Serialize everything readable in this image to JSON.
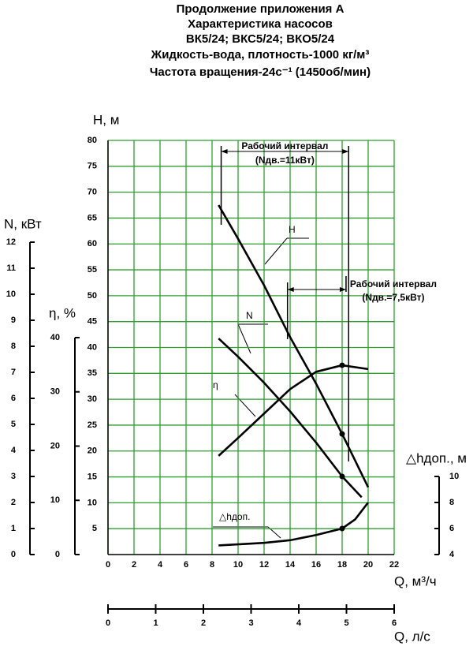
{
  "chart_data": {
    "type": "line",
    "title": [
      "Продолжение приложения А",
      "Характеристика насосов",
      "ВК5/24; ВКС5/24; ВКО5/24",
      "Жидкость-вода, плотность-1000 кг/м³",
      "Частота вращения-24с⁻¹ (1450об/мин)"
    ],
    "xlabel": "Q, м³/ч",
    "xlim": [
      0,
      22
    ],
    "xticks": [
      0,
      2,
      4,
      6,
      8,
      10,
      12,
      14,
      16,
      18,
      20,
      22
    ],
    "x2label": "Q, л/с",
    "x2lim": [
      0,
      6
    ],
    "x2ticks": [
      0,
      1,
      2,
      3,
      4,
      5,
      6
    ],
    "ylabel": "H, м",
    "ylim": [
      0,
      80
    ],
    "yticks": [
      5,
      10,
      15,
      20,
      25,
      30,
      35,
      40,
      45,
      50,
      55,
      60,
      65,
      70,
      75,
      80
    ],
    "y2label": "N, кВт",
    "y2lim": [
      0,
      12
    ],
    "y2ticks": [
      0,
      1,
      2,
      3,
      4,
      5,
      6,
      7,
      8,
      9,
      10,
      11,
      12
    ],
    "y3label": "η, %",
    "y3lim": [
      0,
      40
    ],
    "y3ticks": [
      0,
      10,
      20,
      30,
      40
    ],
    "y4label": "△hдоп., м",
    "y4lim": [
      4,
      10
    ],
    "y4ticks": [
      4,
      6,
      8,
      10
    ],
    "grid": true,
    "grid_color": "#2e9e2e",
    "markers_at_x": 18,
    "series": [
      {
        "name": "H",
        "color": "#000000",
        "axis": "y",
        "x": [
          8.5,
          10,
          12,
          14,
          16,
          18,
          20
        ],
        "values": [
          67.5,
          61,
          52,
          42,
          33,
          23.3,
          13
        ]
      },
      {
        "name": "N",
        "color": "#000000",
        "axis": "y2",
        "x": [
          8.5,
          10,
          12,
          14,
          16,
          18,
          19.5
        ],
        "values": [
          8.3,
          7.6,
          6.6,
          5.5,
          4.3,
          3.0,
          2.2
        ]
      },
      {
        "name": "η",
        "color": "#000000",
        "axis": "y3",
        "x": [
          8.5,
          10,
          12,
          14,
          16,
          18,
          20
        ],
        "values": [
          18.2,
          21.5,
          26,
          30.5,
          33.7,
          34.9,
          34.2
        ]
      },
      {
        "name": "△hдоп.",
        "color": "#000000",
        "axis": "y4",
        "x": [
          8.5,
          12,
          14,
          16,
          18,
          19,
          20
        ],
        "values": [
          4.7,
          4.9,
          5.1,
          5.5,
          6.0,
          6.7,
          8.0
        ]
      }
    ],
    "annotations": [
      {
        "text": "Рабочий интервал",
        "note": "(Nдв.=11кВт)",
        "x": [
          8.7,
          18.5
        ]
      },
      {
        "text": "Рабочий интервал",
        "note": "(Nдв.=7,5кВт)",
        "x": [
          13.8,
          18.3
        ]
      }
    ]
  }
}
